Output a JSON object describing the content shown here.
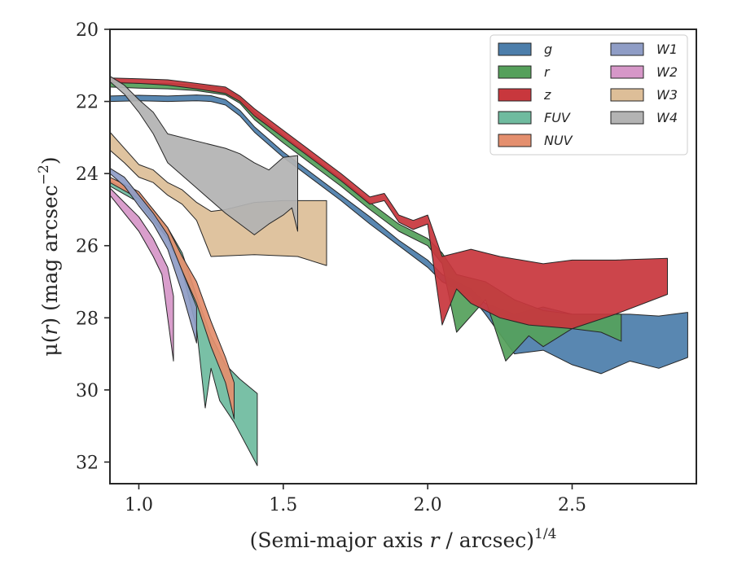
{
  "chart_data": {
    "type": "area",
    "title": "",
    "xlabel_main": "(Semi-major axis ",
    "xlabel_var": "r",
    "xlabel_tail": " / arcsec)",
    "xlabel_sup": "1/4",
    "ylabel_main": "μ(",
    "ylabel_var": "r",
    "ylabel_tail": ") (mag arcsec",
    "ylabel_sup": "−2",
    "ylabel_close": ")",
    "xlim": [
      0.9,
      2.93
    ],
    "ylim": [
      32.6,
      20.0
    ],
    "y_inverted": true,
    "xticks": [
      1.0,
      1.5,
      2.0,
      2.5
    ],
    "xtick_labels": [
      "1.0",
      "1.5",
      "2.0",
      "2.5"
    ],
    "yticks": [
      20,
      22,
      24,
      26,
      28,
      30,
      32
    ],
    "ytick_labels": [
      "20",
      "22",
      "24",
      "26",
      "28",
      "30",
      "32"
    ],
    "grid": false,
    "legend_position": "top-right",
    "legend_columns": 2,
    "series": [
      {
        "name": "g",
        "color": "#4c7eab",
        "upper": [
          [
            0.9,
            21.85
          ],
          [
            1.0,
            21.83
          ],
          [
            1.1,
            21.85
          ],
          [
            1.2,
            21.82
          ],
          [
            1.25,
            21.84
          ],
          [
            1.3,
            21.95
          ],
          [
            1.35,
            22.25
          ],
          [
            1.4,
            22.7
          ],
          [
            1.5,
            23.4
          ],
          [
            1.6,
            24.0
          ],
          [
            1.7,
            24.6
          ],
          [
            1.8,
            25.2
          ],
          [
            1.9,
            25.85
          ],
          [
            2.0,
            26.4
          ],
          [
            2.05,
            26.8
          ],
          [
            2.15,
            27.2
          ],
          [
            2.2,
            27.6
          ],
          [
            2.3,
            27.9
          ],
          [
            2.4,
            27.7
          ],
          [
            2.5,
            27.9
          ],
          [
            2.6,
            27.9
          ],
          [
            2.7,
            27.9
          ],
          [
            2.8,
            27.95
          ],
          [
            2.9,
            27.85
          ]
        ],
        "lower": [
          [
            0.9,
            22.0
          ],
          [
            1.0,
            21.98
          ],
          [
            1.1,
            22.0
          ],
          [
            1.2,
            21.98
          ],
          [
            1.25,
            22.0
          ],
          [
            1.3,
            22.1
          ],
          [
            1.35,
            22.4
          ],
          [
            1.4,
            22.85
          ],
          [
            1.5,
            23.55
          ],
          [
            1.6,
            24.15
          ],
          [
            1.7,
            24.75
          ],
          [
            1.8,
            25.4
          ],
          [
            1.9,
            26.0
          ],
          [
            2.0,
            26.6
          ],
          [
            2.05,
            27.0
          ],
          [
            2.15,
            27.4
          ],
          [
            2.2,
            27.9
          ],
          [
            2.3,
            29.0
          ],
          [
            2.4,
            28.9
          ],
          [
            2.5,
            29.3
          ],
          [
            2.6,
            29.55
          ],
          [
            2.7,
            29.2
          ],
          [
            2.8,
            29.4
          ],
          [
            2.9,
            29.1
          ]
        ]
      },
      {
        "name": "r",
        "color": "#55a05b",
        "upper": [
          [
            0.9,
            21.45
          ],
          [
            1.0,
            21.5
          ],
          [
            1.1,
            21.5
          ],
          [
            1.2,
            21.55
          ],
          [
            1.3,
            21.65
          ],
          [
            1.35,
            21.9
          ],
          [
            1.4,
            22.3
          ],
          [
            1.5,
            22.95
          ],
          [
            1.6,
            23.55
          ],
          [
            1.7,
            24.15
          ],
          [
            1.8,
            24.8
          ],
          [
            1.9,
            25.4
          ],
          [
            2.0,
            25.8
          ],
          [
            2.05,
            26.2
          ],
          [
            2.1,
            26.8
          ],
          [
            2.2,
            27.0
          ],
          [
            2.3,
            27.5
          ],
          [
            2.4,
            27.8
          ],
          [
            2.5,
            27.9
          ],
          [
            2.6,
            27.9
          ],
          [
            2.67,
            27.9
          ]
        ],
        "lower": [
          [
            0.9,
            21.6
          ],
          [
            1.0,
            21.63
          ],
          [
            1.1,
            21.65
          ],
          [
            1.2,
            21.7
          ],
          [
            1.3,
            21.82
          ],
          [
            1.35,
            22.05
          ],
          [
            1.4,
            22.5
          ],
          [
            1.5,
            23.15
          ],
          [
            1.6,
            23.75
          ],
          [
            1.7,
            24.35
          ],
          [
            1.8,
            25.0
          ],
          [
            1.9,
            25.6
          ],
          [
            2.0,
            26.0
          ],
          [
            2.05,
            26.5
          ],
          [
            2.1,
            28.4
          ],
          [
            2.2,
            27.5
          ],
          [
            2.27,
            29.2
          ],
          [
            2.35,
            28.5
          ],
          [
            2.4,
            28.8
          ],
          [
            2.5,
            28.3
          ],
          [
            2.6,
            28.4
          ],
          [
            2.67,
            28.65
          ]
        ]
      },
      {
        "name": "z",
        "color": "#c8373d",
        "upper": [
          [
            0.9,
            21.35
          ],
          [
            1.0,
            21.37
          ],
          [
            1.1,
            21.4
          ],
          [
            1.2,
            21.5
          ],
          [
            1.3,
            21.6
          ],
          [
            1.35,
            21.85
          ],
          [
            1.4,
            22.2
          ],
          [
            1.5,
            22.8
          ],
          [
            1.6,
            23.4
          ],
          [
            1.7,
            24.0
          ],
          [
            1.8,
            24.65
          ],
          [
            1.85,
            24.55
          ],
          [
            1.9,
            25.15
          ],
          [
            1.95,
            25.3
          ],
          [
            2.0,
            25.15
          ],
          [
            2.05,
            26.3
          ],
          [
            2.15,
            26.1
          ],
          [
            2.25,
            26.3
          ],
          [
            2.4,
            26.5
          ],
          [
            2.5,
            26.4
          ],
          [
            2.65,
            26.4
          ],
          [
            2.83,
            26.35
          ]
        ],
        "lower": [
          [
            0.9,
            21.48
          ],
          [
            1.0,
            21.5
          ],
          [
            1.1,
            21.55
          ],
          [
            1.2,
            21.65
          ],
          [
            1.3,
            21.78
          ],
          [
            1.35,
            22.0
          ],
          [
            1.4,
            22.4
          ],
          [
            1.5,
            23.0
          ],
          [
            1.6,
            23.6
          ],
          [
            1.7,
            24.2
          ],
          [
            1.8,
            24.85
          ],
          [
            1.85,
            24.75
          ],
          [
            1.9,
            25.35
          ],
          [
            1.95,
            25.55
          ],
          [
            2.0,
            25.4
          ],
          [
            2.05,
            28.2
          ],
          [
            2.1,
            27.2
          ],
          [
            2.15,
            27.6
          ],
          [
            2.25,
            28.0
          ],
          [
            2.35,
            28.2
          ],
          [
            2.5,
            28.3
          ],
          [
            2.65,
            27.9
          ],
          [
            2.83,
            27.35
          ]
        ]
      },
      {
        "name": "FUV",
        "color": "#6fbb9f",
        "upper": [
          [
            0.9,
            24.2
          ],
          [
            1.0,
            24.6
          ],
          [
            1.05,
            25.0
          ],
          [
            1.1,
            25.5
          ],
          [
            1.15,
            26.2
          ],
          [
            1.2,
            27.4
          ],
          [
            1.25,
            28.5
          ],
          [
            1.3,
            29.3
          ],
          [
            1.35,
            29.7
          ],
          [
            1.41,
            30.1
          ]
        ],
        "lower": [
          [
            0.9,
            24.35
          ],
          [
            1.0,
            24.8
          ],
          [
            1.05,
            25.3
          ],
          [
            1.1,
            25.8
          ],
          [
            1.15,
            26.7
          ],
          [
            1.2,
            28.3
          ],
          [
            1.23,
            30.5
          ],
          [
            1.25,
            29.4
          ],
          [
            1.28,
            30.3
          ],
          [
            1.33,
            30.9
          ],
          [
            1.41,
            32.1
          ]
        ]
      },
      {
        "name": "NUV",
        "color": "#e48f6e",
        "upper": [
          [
            0.9,
            24.1
          ],
          [
            1.0,
            24.5
          ],
          [
            1.05,
            25.0
          ],
          [
            1.1,
            25.5
          ],
          [
            1.15,
            26.3
          ],
          [
            1.2,
            27.0
          ],
          [
            1.25,
            28.1
          ],
          [
            1.3,
            29.1
          ],
          [
            1.33,
            29.8
          ]
        ],
        "lower": [
          [
            0.9,
            24.25
          ],
          [
            1.0,
            24.7
          ],
          [
            1.05,
            25.2
          ],
          [
            1.1,
            25.8
          ],
          [
            1.15,
            26.7
          ],
          [
            1.2,
            27.6
          ],
          [
            1.25,
            28.8
          ],
          [
            1.3,
            29.8
          ],
          [
            1.33,
            30.8
          ]
        ]
      },
      {
        "name": "W1",
        "color": "#8f9dc6",
        "upper": [
          [
            0.9,
            23.85
          ],
          [
            0.95,
            24.1
          ],
          [
            1.0,
            24.6
          ],
          [
            1.05,
            25.1
          ],
          [
            1.1,
            25.7
          ],
          [
            1.15,
            26.7
          ],
          [
            1.2,
            27.7
          ]
        ],
        "lower": [
          [
            0.9,
            24.0
          ],
          [
            0.95,
            24.35
          ],
          [
            1.0,
            24.9
          ],
          [
            1.05,
            25.4
          ],
          [
            1.1,
            26.1
          ],
          [
            1.15,
            27.3
          ],
          [
            1.2,
            28.7
          ]
        ]
      },
      {
        "name": "W2",
        "color": "#d697c8",
        "upper": [
          [
            0.9,
            24.4
          ],
          [
            0.95,
            24.8
          ],
          [
            1.0,
            25.2
          ],
          [
            1.05,
            25.8
          ],
          [
            1.1,
            26.6
          ],
          [
            1.12,
            27.4
          ]
        ],
        "lower": [
          [
            0.9,
            24.6
          ],
          [
            0.95,
            25.1
          ],
          [
            1.0,
            25.6
          ],
          [
            1.05,
            26.3
          ],
          [
            1.08,
            26.8
          ],
          [
            1.12,
            29.2
          ]
        ]
      },
      {
        "name": "W3",
        "color": "#ddbe98",
        "upper": [
          [
            0.9,
            22.85
          ],
          [
            0.95,
            23.3
          ],
          [
            1.0,
            23.75
          ],
          [
            1.05,
            23.9
          ],
          [
            1.1,
            24.25
          ],
          [
            1.15,
            24.45
          ],
          [
            1.2,
            24.8
          ],
          [
            1.25,
            25.05
          ],
          [
            1.3,
            25.0
          ],
          [
            1.4,
            24.8
          ],
          [
            1.5,
            24.75
          ],
          [
            1.65,
            24.75
          ]
        ],
        "lower": [
          [
            0.9,
            23.35
          ],
          [
            0.95,
            23.7
          ],
          [
            1.0,
            24.1
          ],
          [
            1.05,
            24.25
          ],
          [
            1.1,
            24.6
          ],
          [
            1.15,
            24.85
          ],
          [
            1.2,
            25.3
          ],
          [
            1.25,
            26.3
          ],
          [
            1.4,
            26.25
          ],
          [
            1.55,
            26.3
          ],
          [
            1.65,
            26.55
          ]
        ]
      },
      {
        "name": "W4",
        "color": "#b3b3b3",
        "upper": [
          [
            0.9,
            21.3
          ],
          [
            0.95,
            21.55
          ],
          [
            1.0,
            21.95
          ],
          [
            1.05,
            22.3
          ],
          [
            1.1,
            22.9
          ],
          [
            1.2,
            23.1
          ],
          [
            1.3,
            23.3
          ],
          [
            1.35,
            23.45
          ],
          [
            1.4,
            23.7
          ],
          [
            1.45,
            23.9
          ],
          [
            1.5,
            23.55
          ],
          [
            1.55,
            23.5
          ]
        ],
        "lower": [
          [
            0.9,
            21.45
          ],
          [
            0.95,
            21.8
          ],
          [
            1.0,
            22.3
          ],
          [
            1.05,
            22.9
          ],
          [
            1.1,
            23.7
          ],
          [
            1.2,
            24.4
          ],
          [
            1.3,
            25.1
          ],
          [
            1.4,
            25.7
          ],
          [
            1.45,
            25.4
          ],
          [
            1.5,
            25.15
          ],
          [
            1.53,
            24.95
          ],
          [
            1.55,
            25.6
          ]
        ]
      }
    ]
  }
}
